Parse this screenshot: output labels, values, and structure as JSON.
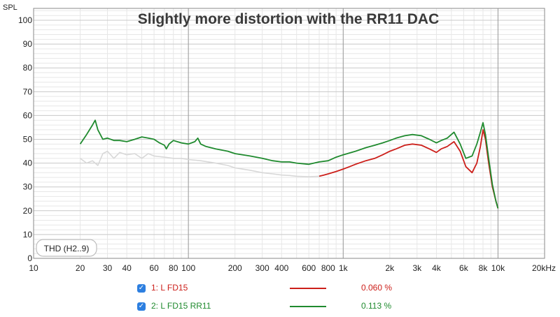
{
  "chart_data": {
    "type": "line",
    "title": "Slightly more distortion with the RR11 DAC",
    "ylabel": "SPL",
    "xscale": "log",
    "xlim": [
      10,
      20000
    ],
    "ylim": [
      0,
      105
    ],
    "yticks": [
      0,
      10,
      20,
      30,
      40,
      50,
      60,
      70,
      80,
      90,
      100
    ],
    "ytick_labels": [
      "0",
      "10",
      "20",
      "30",
      "40",
      "50",
      "60",
      "70",
      "80",
      "90",
      "100"
    ],
    "xticks": [
      10,
      20,
      30,
      40,
      60,
      80,
      100,
      200,
      300,
      400,
      600,
      800,
      1000,
      2000,
      3000,
      4000,
      6000,
      8000,
      10000,
      20000
    ],
    "xtick_labels": [
      "10",
      "20",
      "30",
      "40",
      "60",
      "80",
      "100",
      "200",
      "300",
      "400",
      "600",
      "800",
      "1k",
      "2k",
      "3k",
      "4k",
      "6k",
      "8k",
      "10k",
      "20kHz"
    ],
    "grid": true,
    "annotation": "THD (H2..9)",
    "series": [
      {
        "name": "1: L FD15",
        "value_label": "0.060 %",
        "color": "#cc1f1a",
        "checked": true,
        "x": [
          700,
          750,
          800,
          900,
          1000,
          1100,
          1200,
          1400,
          1600,
          1800,
          2000,
          2200,
          2500,
          2800,
          3200,
          3600,
          4000,
          4300,
          4700,
          5200,
          5700,
          6200,
          6800,
          7300,
          7700,
          8000,
          8300,
          8700,
          9200,
          9700,
          10000
        ],
        "values": [
          34.5,
          35,
          35.5,
          36.5,
          37.5,
          38.5,
          39.5,
          41,
          42,
          43.5,
          45,
          46,
          47.5,
          48,
          47.5,
          46,
          44.5,
          46,
          47,
          49,
          45,
          38.5,
          36,
          40,
          47,
          54,
          50,
          40,
          30,
          24,
          21
        ]
      },
      {
        "name": "2: L FD15 RR11",
        "value_label": "0.113 %",
        "color": "#1f8a2e",
        "checked": true,
        "x": [
          20,
          22,
          24,
          25,
          26,
          28,
          30,
          33,
          36,
          40,
          45,
          50,
          55,
          60,
          65,
          70,
          72,
          75,
          80,
          90,
          100,
          110,
          115,
          120,
          130,
          150,
          180,
          200,
          250,
          300,
          350,
          400,
          450,
          500,
          600,
          700,
          800,
          900,
          1000,
          1200,
          1400,
          1600,
          1800,
          2000,
          2200,
          2500,
          2800,
          3200,
          3600,
          4000,
          4300,
          4700,
          5200,
          5700,
          6200,
          6800,
          7300,
          7700,
          8000,
          8300,
          8700,
          9200,
          9700,
          10000
        ],
        "values": [
          48,
          52,
          56,
          58,
          54,
          50,
          50.5,
          49.5,
          49.5,
          49,
          50,
          51,
          50.5,
          50,
          48.5,
          47.5,
          46,
          48,
          49.5,
          48.5,
          48,
          49,
          50.5,
          48,
          47,
          46,
          45,
          44,
          43,
          42,
          41,
          40.5,
          40.5,
          40,
          39.5,
          40.5,
          41,
          42.5,
          43.5,
          45,
          46.5,
          47.5,
          48.5,
          49.5,
          50.5,
          51.5,
          52,
          51.5,
          50,
          48.5,
          49.5,
          50.5,
          53,
          48,
          42,
          43,
          48,
          53,
          57,
          52,
          42,
          31,
          24,
          21
        ]
      },
      {
        "name": "",
        "color": "#d8d8d8",
        "x": [
          20,
          22,
          24,
          26,
          28,
          30,
          33,
          36,
          40,
          45,
          50,
          55,
          60,
          70,
          80,
          90,
          100,
          120,
          150,
          180,
          200,
          250,
          300,
          350,
          400,
          450,
          500,
          600,
          700
        ],
        "values": [
          42,
          40,
          41,
          39,
          44,
          45,
          42,
          44.5,
          43.5,
          44,
          42,
          44,
          43,
          42.5,
          42,
          42,
          41.5,
          41,
          40,
          39,
          38,
          37,
          36,
          35.5,
          35,
          34.8,
          34.5,
          34.3,
          34.5
        ]
      }
    ]
  }
}
